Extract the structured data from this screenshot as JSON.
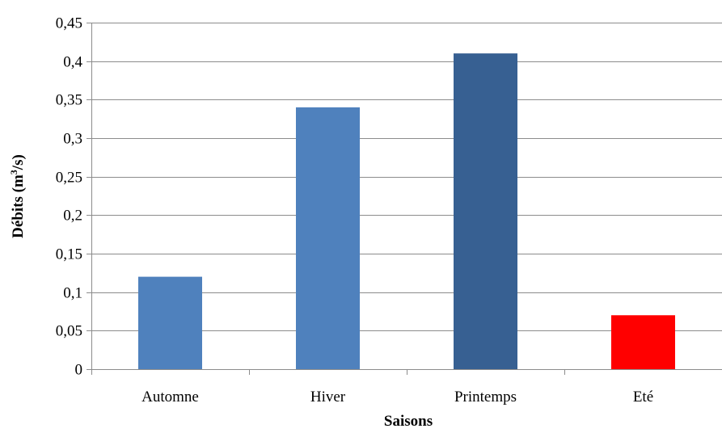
{
  "chart_data": {
    "type": "bar",
    "categories": [
      "Automne",
      "Hiver",
      "Printemps",
      "Eté"
    ],
    "values": [
      0.12,
      0.34,
      0.41,
      0.07
    ],
    "bar_colors": [
      "#4f81bd",
      "#4f81bd",
      "#376092",
      "#ff0000"
    ],
    "xlabel": "Saisons",
    "ylabel_prefix": "Débits (m",
    "ylabel_sup": "3",
    "ylabel_suffix": "/s)",
    "ylim": [
      0,
      0.45
    ],
    "yticks": [
      0,
      0.05,
      0.1,
      0.15,
      0.2,
      0.25,
      0.3,
      0.35,
      0.4,
      0.45
    ],
    "ytick_labels": [
      "0",
      "0,05",
      "0,1",
      "0,15",
      "0,2",
      "0,25",
      "0,3",
      "0,35",
      "0,4",
      "0,45"
    ],
    "grid": true,
    "legend": "none"
  }
}
